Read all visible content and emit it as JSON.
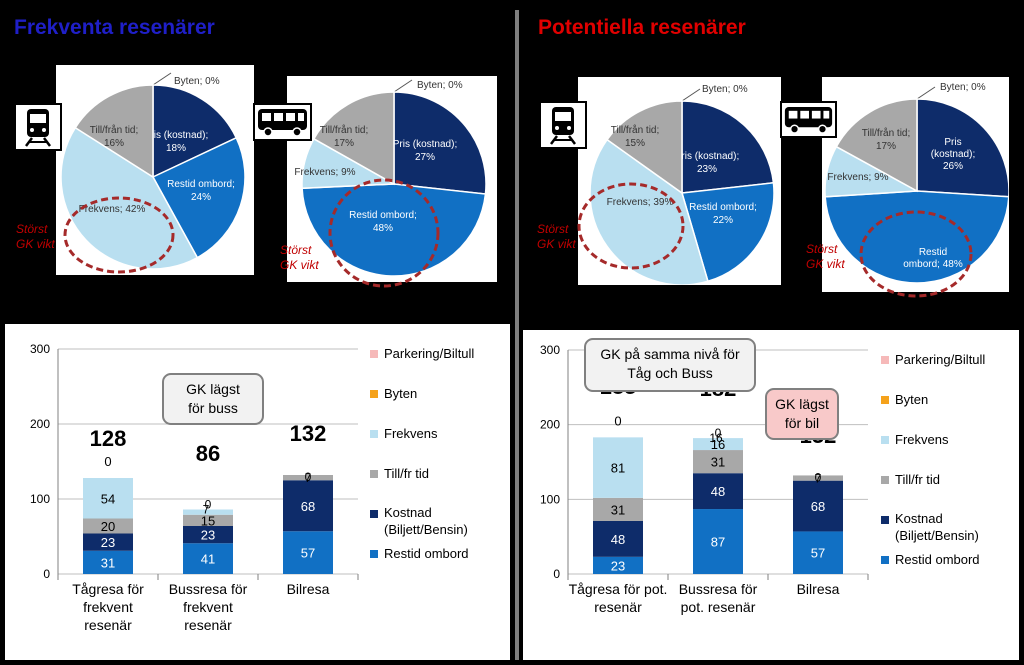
{
  "headers": {
    "left": {
      "text": "Frekventa resenärer",
      "color": "#1f1fc8"
    },
    "right": {
      "text": "Potentiella resenärer",
      "color": "#e00000"
    }
  },
  "colors": {
    "Pris": "#0e2c6a",
    "Restid": "#1170c4",
    "Frekvens": "#b9dff0",
    "TillFran": "#a8a8a8",
    "Byten": "#f5a21b",
    "Parkering": "#f6b9b9",
    "circle": "#a52a2a"
  },
  "annotations": {
    "storst": "Störst",
    "gkvikt": "GK vikt"
  },
  "icons": {
    "train": "train-icon",
    "bus": "bus-icon"
  },
  "chart_data": [
    {
      "type": "pie",
      "group": "Frekventa resenärer",
      "mode": "Tåg",
      "slices": [
        {
          "label": "Byten; 0%",
          "value": 0,
          "key": "Byten"
        },
        {
          "label": "Pris (kostnad); 18%",
          "value": 18,
          "key": "Pris"
        },
        {
          "label": "Restid ombord; 24%",
          "value": 24,
          "key": "Restid"
        },
        {
          "label": "Frekvens; 42%",
          "value": 42,
          "key": "Frekvens"
        },
        {
          "label": "Till/från tid; 16%",
          "value": 16,
          "key": "TillFran"
        }
      ]
    },
    {
      "type": "pie",
      "group": "Frekventa resenärer",
      "mode": "Buss",
      "slices": [
        {
          "label": "Byten; 0%",
          "value": 0,
          "key": "Byten"
        },
        {
          "label": "Pris (kostnad); 27%",
          "value": 27,
          "key": "Pris"
        },
        {
          "label": "Restid ombord; 48%",
          "value": 48,
          "key": "Restid"
        },
        {
          "label": "Frekvens; 9%",
          "value": 9,
          "key": "Frekvens"
        },
        {
          "label": "Till/från tid; 17%",
          "value": 17,
          "key": "TillFran"
        }
      ]
    },
    {
      "type": "pie",
      "group": "Potentiella resenärer",
      "mode": "Tåg",
      "slices": [
        {
          "label": "Byten; 0%",
          "value": 0,
          "key": "Byten"
        },
        {
          "label": "Pris (kostnad); 23%",
          "value": 23,
          "key": "Pris"
        },
        {
          "label": "Restid ombord; 22%",
          "value": 22,
          "key": "Restid"
        },
        {
          "label": "Frekvens; 39%",
          "value": 39,
          "key": "Frekvens"
        },
        {
          "label": "Till/från tid; 15%",
          "value": 15,
          "key": "TillFran"
        }
      ]
    },
    {
      "type": "pie",
      "group": "Potentiella resenärer",
      "mode": "Buss",
      "slices": [
        {
          "label": "Byten; 0%",
          "value": 0,
          "key": "Byten"
        },
        {
          "label": "Pris (kostnad); 26%",
          "value": 26,
          "key": "Pris"
        },
        {
          "label": "Restid ombord; 48%",
          "value": 48,
          "key": "Restid"
        },
        {
          "label": "Frekvens; 9%",
          "value": 9,
          "key": "Frekvens"
        },
        {
          "label": "Till/från tid; 17%",
          "value": 17,
          "key": "TillFran"
        }
      ]
    },
    {
      "type": "bar",
      "stacked": true,
      "group": "Frekventa resenärer",
      "categories": [
        [
          "Tågresa för",
          "frekvent",
          "resenär"
        ],
        [
          "Bussresa för",
          "frekvent",
          "resenär"
        ],
        [
          "Bilresa"
        ]
      ],
      "ylim": [
        0,
        300
      ],
      "yticks": [
        0,
        100,
        200,
        300
      ],
      "totals": [
        "128",
        "86",
        "132"
      ],
      "series": [
        {
          "name": "Restid ombord",
          "key": "Restid",
          "values": [
            31,
            41,
            57
          ]
        },
        {
          "name": "Kostnad (Biljett/Bensin)",
          "key": "Pris",
          "values": [
            23,
            23,
            68
          ]
        },
        {
          "name": "Till/fr tid",
          "key": "TillFran",
          "values": [
            20,
            15,
            7
          ]
        },
        {
          "name": "Frekvens",
          "key": "Frekvens",
          "values": [
            54,
            7,
            0
          ]
        },
        {
          "name": "Byten",
          "key": "Byten",
          "values": [
            0,
            0,
            0
          ]
        },
        {
          "name": "Parkering/Biltull",
          "key": "Parkering",
          "values": [
            0,
            0,
            0
          ]
        }
      ],
      "labels": [
        [
          "31",
          "23",
          "20",
          "54",
          "0"
        ],
        [
          "41",
          "23",
          "15",
          "7",
          "0"
        ],
        [
          "57",
          "68",
          "7",
          "",
          "0"
        ]
      ],
      "callout": "GK lägst för buss"
    },
    {
      "type": "bar",
      "stacked": true,
      "group": "Potentiella resenärer",
      "categories": [
        [
          "Tågresa för pot.",
          "resenär"
        ],
        [
          "Bussresa för",
          "pot. resenär"
        ],
        [
          "Bilresa"
        ]
      ],
      "ylim": [
        0,
        300
      ],
      "yticks": [
        0,
        100,
        200,
        300
      ],
      "totals": [
        "183",
        "182",
        "132"
      ],
      "series": [
        {
          "name": "Restid ombord",
          "key": "Restid",
          "values": [
            23,
            87,
            57
          ]
        },
        {
          "name": "Kostnad (Biljett/Bensin)",
          "key": "Pris",
          "values": [
            48,
            48,
            68
          ]
        },
        {
          "name": "Till/fr tid",
          "key": "TillFran",
          "values": [
            31,
            31,
            7
          ]
        },
        {
          "name": "Frekvens",
          "key": "Frekvens",
          "values": [
            81,
            16,
            0
          ]
        },
        {
          "name": "Byten",
          "key": "Byten",
          "values": [
            0,
            0,
            0
          ]
        },
        {
          "name": "Parkering/Biltull",
          "key": "Parkering",
          "values": [
            0,
            0,
            0
          ]
        }
      ],
      "labels": [
        [
          "23",
          "48",
          "31",
          "81",
          "0"
        ],
        [
          "87",
          "48",
          "31",
          "16",
          "0"
        ],
        [
          "57",
          "68",
          "7",
          "",
          "0"
        ]
      ],
      "callout": "GK på samma nivå för Tåg och Buss",
      "callout2": "GK lägst för bil"
    }
  ]
}
